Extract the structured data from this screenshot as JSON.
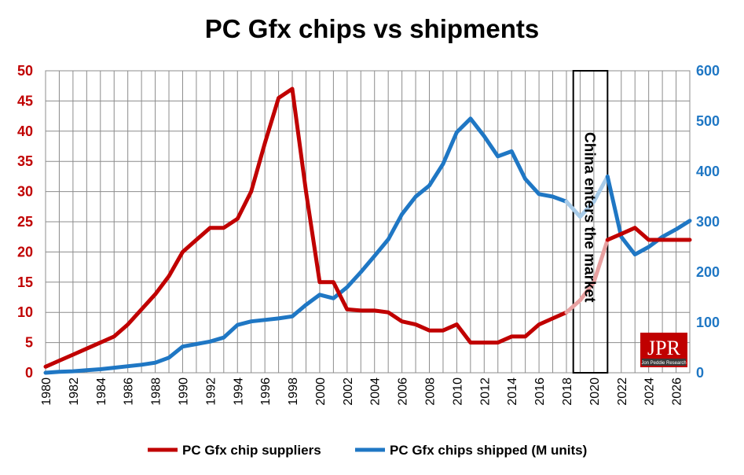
{
  "chart_data": {
    "type": "line",
    "title": "PC Gfx chips vs shipments",
    "x_range": [
      1980,
      2027
    ],
    "x_tick_labels": [
      "1980",
      "1982",
      "1984",
      "1986",
      "1988",
      "1990",
      "1992",
      "1994",
      "1996",
      "1998",
      "2000",
      "2002",
      "2004",
      "2006",
      "2008",
      "2010",
      "2012",
      "2014",
      "2016",
      "2018",
      "2020",
      "2022",
      "2024",
      "2026"
    ],
    "y_left": {
      "range": [
        0,
        50
      ],
      "ticks": [
        "0",
        "5",
        "10",
        "15",
        "20",
        "25",
        "30",
        "35",
        "40",
        "45",
        "50"
      ],
      "color": "#c00000"
    },
    "y_right": {
      "range": [
        0,
        600
      ],
      "ticks": [
        "0",
        "100",
        "200",
        "300",
        "400",
        "500",
        "600"
      ],
      "color": "#1f77c4"
    },
    "grid": true,
    "legend_position": "bottom",
    "series": [
      {
        "name": "PC Gfx chip suppliers",
        "axis": "left",
        "color": "#c00000",
        "forecast_color": "#e8a0a0",
        "x": [
          1980,
          1981,
          1982,
          1983,
          1984,
          1985,
          1986,
          1987,
          1988,
          1989,
          1990,
          1991,
          1992,
          1993,
          1994,
          1995,
          1996,
          1997,
          1998,
          1999,
          2000,
          2001,
          2002,
          2003,
          2004,
          2005,
          2006,
          2007,
          2008,
          2009,
          2010,
          2011,
          2012,
          2013,
          2014,
          2015,
          2016,
          2017,
          2018,
          2019,
          2020,
          2021,
          2022,
          2023,
          2024,
          2025,
          2026,
          2027
        ],
        "values": [
          1,
          2,
          3,
          4,
          5,
          6,
          8,
          10.5,
          13,
          16,
          20,
          22,
          24,
          24,
          25.5,
          30,
          38,
          45.5,
          47,
          30,
          15,
          15,
          10.5,
          10.3,
          10.3,
          10,
          8.5,
          8,
          7,
          7,
          8,
          5,
          5,
          5,
          6,
          6,
          8,
          9,
          10,
          12,
          15,
          22,
          23,
          24,
          22,
          22,
          22,
          22
        ]
      },
      {
        "name": "PC Gfx chips shipped (M units)",
        "axis": "right",
        "color": "#1f77c4",
        "forecast_color": "#a8cbe8",
        "x": [
          1980,
          1981,
          1982,
          1983,
          1984,
          1985,
          1986,
          1987,
          1988,
          1989,
          1990,
          1991,
          1992,
          1993,
          1994,
          1995,
          1996,
          1997,
          1998,
          1999,
          2000,
          2001,
          2002,
          2003,
          2004,
          2005,
          2006,
          2007,
          2008,
          2009,
          2010,
          2011,
          2012,
          2013,
          2014,
          2015,
          2016,
          2017,
          2018,
          2019,
          2020,
          2021,
          2022,
          2023,
          2024,
          2025,
          2026,
          2027
        ],
        "values": [
          0,
          2,
          3,
          5,
          7,
          10,
          13,
          16,
          20,
          30,
          52,
          57,
          62,
          70,
          95,
          102,
          105,
          108,
          112,
          135,
          155,
          148,
          170,
          200,
          232,
          265,
          315,
          350,
          372,
          415,
          478,
          505,
          470,
          430,
          440,
          385,
          355,
          350,
          340,
          310,
          340,
          390,
          270,
          235,
          250,
          270,
          285,
          302
        ]
      }
    ],
    "annotation": {
      "text": "China enters the market",
      "x_from": 2018.5,
      "x_to": 2021
    },
    "legend": [
      "PC Gfx chip suppliers",
      "PC Gfx chips shipped (M units)"
    ],
    "logo": {
      "text": "JPR",
      "subtext": "Jon Peddie Research"
    }
  }
}
